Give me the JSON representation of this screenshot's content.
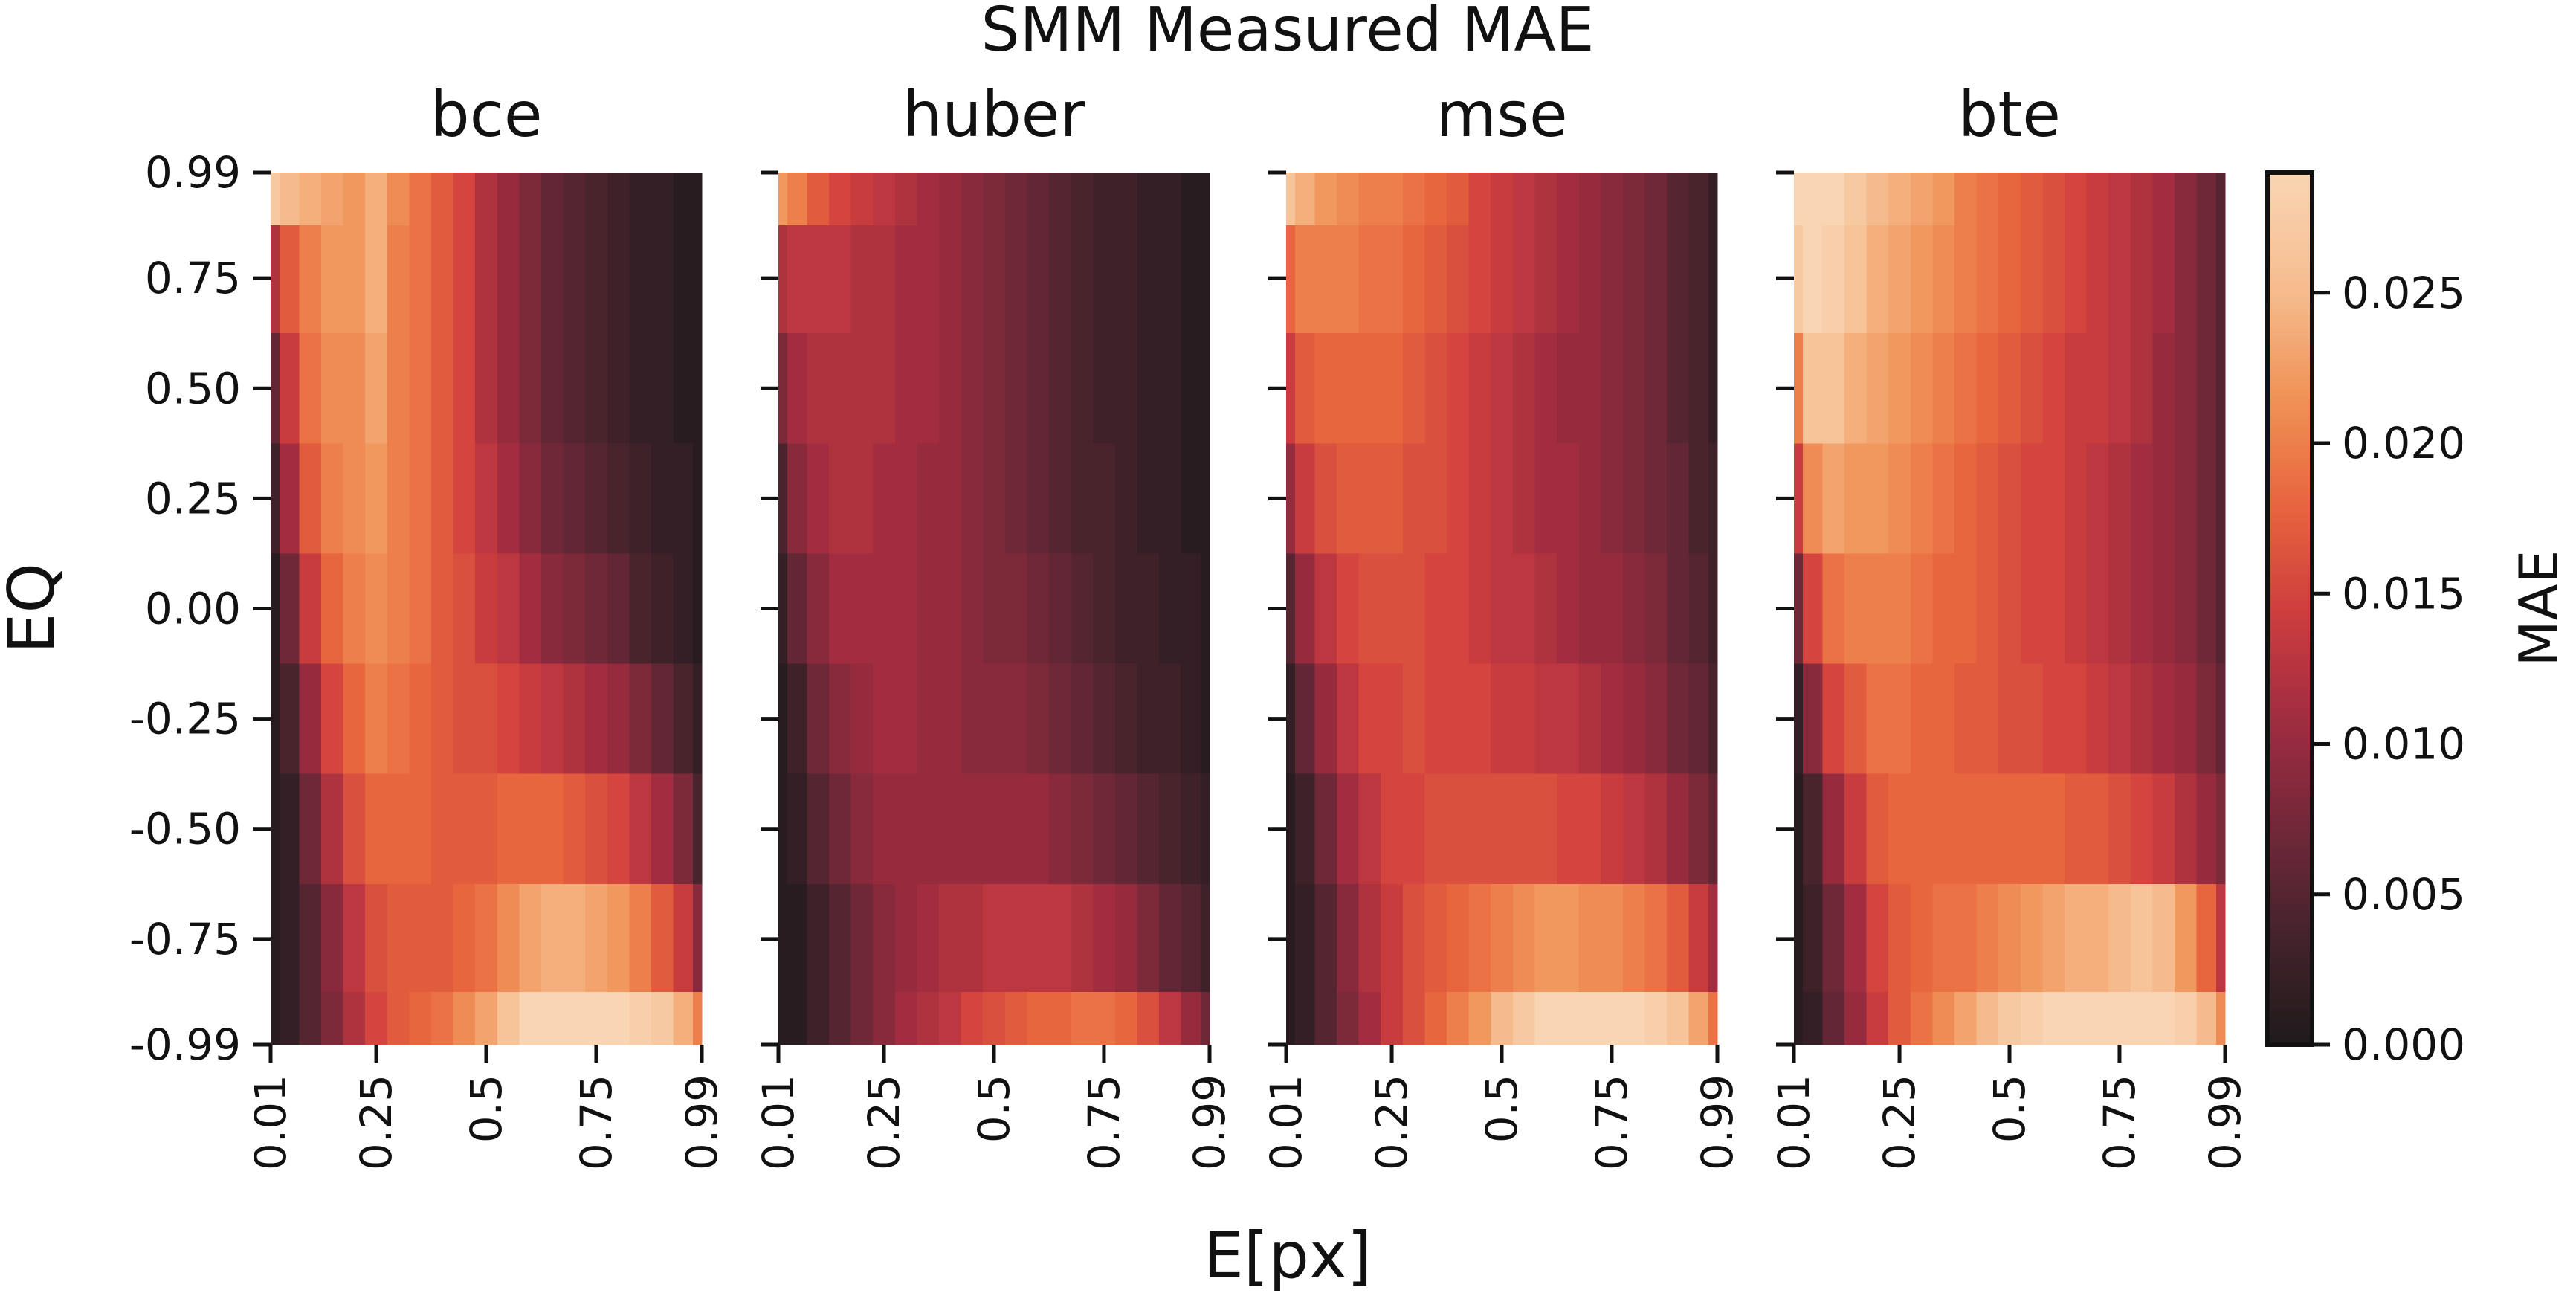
{
  "chart_data": {
    "type": "heatmap",
    "title": "SMM Measured MAE",
    "xlabel": "E[px]",
    "ylabel": "EQ",
    "x_ticks": [
      "0.01",
      "0.25",
      "0.5",
      "0.75",
      "0.99"
    ],
    "y_ticks": [
      "0.99",
      "0.75",
      "0.50",
      "0.25",
      "0.00",
      "-0.25",
      "-0.50",
      "-0.75",
      "-0.99"
    ],
    "xlim": [
      0.01,
      0.99
    ],
    "ylim": [
      -0.99,
      0.99
    ],
    "colorbar": {
      "label": "MAE",
      "range": [
        0.0,
        0.029
      ],
      "ticks": [
        "0.000",
        "0.005",
        "0.010",
        "0.015",
        "0.020",
        "0.025"
      ],
      "colormap": [
        "#1f1a1c",
        "#44232c",
        "#722839",
        "#a12c40",
        "#cf3f3e",
        "#e9673d",
        "#f0955a",
        "#f6bf93",
        "#f9d5b3"
      ]
    },
    "grid": false,
    "panels": [
      {
        "name": "bce",
        "x": [
          0.01,
          0.05,
          0.1,
          0.15,
          0.2,
          0.25,
          0.3,
          0.35,
          0.4,
          0.45,
          0.5,
          0.55,
          0.6,
          0.65,
          0.7,
          0.75,
          0.8,
          0.85,
          0.9,
          0.95,
          0.99
        ],
        "y": [
          0.99,
          0.75,
          0.5,
          0.25,
          0.0,
          -0.25,
          -0.5,
          -0.75,
          -0.99
        ],
        "z": [
          [
            0.027,
            0.025,
            0.024,
            0.023,
            0.022,
            0.024,
            0.021,
            0.019,
            0.017,
            0.015,
            0.012,
            0.01,
            0.008,
            0.006,
            0.005,
            0.004,
            0.003,
            0.002,
            0.002,
            0.001,
            0.001
          ],
          [
            0.012,
            0.017,
            0.02,
            0.022,
            0.022,
            0.024,
            0.02,
            0.019,
            0.017,
            0.015,
            0.012,
            0.01,
            0.008,
            0.006,
            0.005,
            0.004,
            0.003,
            0.002,
            0.002,
            0.001,
            0.001
          ],
          [
            0.006,
            0.014,
            0.019,
            0.021,
            0.021,
            0.023,
            0.02,
            0.019,
            0.017,
            0.015,
            0.012,
            0.01,
            0.008,
            0.006,
            0.005,
            0.004,
            0.003,
            0.002,
            0.002,
            0.001,
            0.001
          ],
          [
            0.003,
            0.011,
            0.017,
            0.02,
            0.021,
            0.022,
            0.02,
            0.019,
            0.017,
            0.015,
            0.013,
            0.011,
            0.009,
            0.007,
            0.006,
            0.005,
            0.004,
            0.003,
            0.002,
            0.002,
            0.001
          ],
          [
            0.001,
            0.007,
            0.014,
            0.018,
            0.02,
            0.021,
            0.02,
            0.019,
            0.017,
            0.016,
            0.014,
            0.013,
            0.011,
            0.009,
            0.008,
            0.007,
            0.006,
            0.004,
            0.003,
            0.002,
            0.001
          ],
          [
            0.001,
            0.004,
            0.01,
            0.015,
            0.018,
            0.02,
            0.019,
            0.018,
            0.017,
            0.016,
            0.016,
            0.015,
            0.014,
            0.013,
            0.012,
            0.011,
            0.01,
            0.008,
            0.006,
            0.004,
            0.002
          ],
          [
            0.001,
            0.002,
            0.007,
            0.012,
            0.016,
            0.018,
            0.018,
            0.018,
            0.017,
            0.017,
            0.017,
            0.018,
            0.018,
            0.018,
            0.017,
            0.016,
            0.015,
            0.013,
            0.011,
            0.008,
            0.004
          ],
          [
            0.001,
            0.002,
            0.005,
            0.009,
            0.013,
            0.016,
            0.017,
            0.017,
            0.017,
            0.018,
            0.019,
            0.021,
            0.023,
            0.024,
            0.024,
            0.023,
            0.022,
            0.02,
            0.017,
            0.014,
            0.009
          ],
          [
            0.001,
            0.002,
            0.005,
            0.008,
            0.012,
            0.015,
            0.017,
            0.018,
            0.019,
            0.021,
            0.023,
            0.026,
            0.029,
            0.029,
            0.029,
            0.029,
            0.029,
            0.028,
            0.027,
            0.024,
            0.02
          ]
        ]
      },
      {
        "name": "huber",
        "x": [
          0.01,
          0.05,
          0.1,
          0.15,
          0.2,
          0.25,
          0.3,
          0.35,
          0.4,
          0.45,
          0.5,
          0.55,
          0.6,
          0.65,
          0.7,
          0.75,
          0.8,
          0.85,
          0.9,
          0.95,
          0.99
        ],
        "y": [
          0.99,
          0.75,
          0.5,
          0.25,
          0.0,
          -0.25,
          -0.5,
          -0.75,
          -0.99
        ],
        "z": [
          [
            0.022,
            0.02,
            0.017,
            0.015,
            0.014,
            0.013,
            0.012,
            0.011,
            0.01,
            0.009,
            0.008,
            0.007,
            0.006,
            0.005,
            0.004,
            0.003,
            0.003,
            0.002,
            0.002,
            0.001,
            0.001
          ],
          [
            0.012,
            0.013,
            0.013,
            0.013,
            0.012,
            0.012,
            0.011,
            0.011,
            0.01,
            0.009,
            0.008,
            0.007,
            0.006,
            0.005,
            0.004,
            0.003,
            0.003,
            0.002,
            0.002,
            0.001,
            0.001
          ],
          [
            0.008,
            0.011,
            0.012,
            0.012,
            0.012,
            0.012,
            0.011,
            0.011,
            0.01,
            0.009,
            0.008,
            0.007,
            0.006,
            0.005,
            0.004,
            0.003,
            0.003,
            0.002,
            0.002,
            0.001,
            0.001
          ],
          [
            0.004,
            0.009,
            0.011,
            0.012,
            0.012,
            0.011,
            0.011,
            0.01,
            0.01,
            0.009,
            0.008,
            0.007,
            0.006,
            0.005,
            0.004,
            0.004,
            0.003,
            0.002,
            0.002,
            0.001,
            0.001
          ],
          [
            0.002,
            0.006,
            0.009,
            0.011,
            0.011,
            0.011,
            0.011,
            0.01,
            0.01,
            0.009,
            0.008,
            0.008,
            0.007,
            0.006,
            0.005,
            0.004,
            0.003,
            0.003,
            0.002,
            0.002,
            0.001
          ],
          [
            0.001,
            0.003,
            0.007,
            0.009,
            0.01,
            0.011,
            0.011,
            0.01,
            0.01,
            0.009,
            0.009,
            0.009,
            0.008,
            0.007,
            0.006,
            0.005,
            0.004,
            0.003,
            0.003,
            0.002,
            0.001
          ],
          [
            0.001,
            0.002,
            0.005,
            0.007,
            0.009,
            0.01,
            0.01,
            0.01,
            0.01,
            0.01,
            0.01,
            0.01,
            0.01,
            0.009,
            0.008,
            0.007,
            0.006,
            0.005,
            0.004,
            0.003,
            0.002
          ],
          [
            0.001,
            0.001,
            0.003,
            0.005,
            0.007,
            0.009,
            0.01,
            0.011,
            0.012,
            0.012,
            0.013,
            0.013,
            0.013,
            0.013,
            0.012,
            0.011,
            0.01,
            0.008,
            0.006,
            0.005,
            0.003
          ],
          [
            0.001,
            0.001,
            0.003,
            0.005,
            0.007,
            0.009,
            0.011,
            0.012,
            0.013,
            0.015,
            0.016,
            0.017,
            0.018,
            0.018,
            0.019,
            0.019,
            0.018,
            0.016,
            0.013,
            0.01,
            0.007
          ]
        ]
      },
      {
        "name": "mse",
        "x": [
          0.01,
          0.05,
          0.1,
          0.15,
          0.2,
          0.25,
          0.3,
          0.35,
          0.4,
          0.45,
          0.5,
          0.55,
          0.6,
          0.65,
          0.7,
          0.75,
          0.8,
          0.85,
          0.9,
          0.95,
          0.99
        ],
        "y": [
          0.99,
          0.75,
          0.5,
          0.25,
          0.0,
          -0.25,
          -0.5,
          -0.75,
          -0.99
        ],
        "z": [
          [
            0.026,
            0.024,
            0.022,
            0.021,
            0.02,
            0.02,
            0.019,
            0.018,
            0.017,
            0.015,
            0.014,
            0.013,
            0.012,
            0.011,
            0.01,
            0.009,
            0.008,
            0.007,
            0.005,
            0.004,
            0.002
          ],
          [
            0.018,
            0.02,
            0.02,
            0.02,
            0.019,
            0.019,
            0.018,
            0.017,
            0.016,
            0.015,
            0.014,
            0.013,
            0.012,
            0.011,
            0.01,
            0.009,
            0.008,
            0.007,
            0.005,
            0.004,
            0.002
          ],
          [
            0.014,
            0.017,
            0.018,
            0.018,
            0.018,
            0.018,
            0.017,
            0.016,
            0.015,
            0.014,
            0.013,
            0.012,
            0.011,
            0.01,
            0.01,
            0.009,
            0.008,
            0.007,
            0.005,
            0.004,
            0.002
          ],
          [
            0.01,
            0.014,
            0.016,
            0.017,
            0.017,
            0.017,
            0.016,
            0.016,
            0.015,
            0.014,
            0.013,
            0.012,
            0.011,
            0.011,
            0.01,
            0.009,
            0.008,
            0.007,
            0.006,
            0.004,
            0.003
          ],
          [
            0.005,
            0.01,
            0.013,
            0.015,
            0.016,
            0.016,
            0.016,
            0.015,
            0.015,
            0.014,
            0.013,
            0.013,
            0.012,
            0.011,
            0.01,
            0.01,
            0.009,
            0.008,
            0.006,
            0.005,
            0.003
          ],
          [
            0.002,
            0.006,
            0.01,
            0.013,
            0.015,
            0.015,
            0.016,
            0.015,
            0.015,
            0.015,
            0.014,
            0.014,
            0.013,
            0.013,
            0.012,
            0.011,
            0.01,
            0.009,
            0.007,
            0.006,
            0.004
          ],
          [
            0.001,
            0.003,
            0.007,
            0.011,
            0.013,
            0.015,
            0.015,
            0.016,
            0.016,
            0.016,
            0.016,
            0.016,
            0.016,
            0.015,
            0.015,
            0.014,
            0.013,
            0.012,
            0.01,
            0.008,
            0.006
          ],
          [
            0.001,
            0.002,
            0.005,
            0.009,
            0.012,
            0.014,
            0.016,
            0.017,
            0.018,
            0.019,
            0.02,
            0.021,
            0.022,
            0.022,
            0.021,
            0.021,
            0.02,
            0.019,
            0.017,
            0.014,
            0.011
          ],
          [
            0.001,
            0.002,
            0.005,
            0.008,
            0.011,
            0.014,
            0.016,
            0.018,
            0.02,
            0.022,
            0.025,
            0.027,
            0.029,
            0.029,
            0.029,
            0.029,
            0.029,
            0.028,
            0.026,
            0.023,
            0.019
          ]
        ]
      },
      {
        "name": "bte",
        "x": [
          0.01,
          0.05,
          0.1,
          0.15,
          0.2,
          0.25,
          0.3,
          0.35,
          0.4,
          0.45,
          0.5,
          0.55,
          0.6,
          0.65,
          0.7,
          0.75,
          0.8,
          0.85,
          0.9,
          0.95,
          0.99
        ],
        "y": [
          0.99,
          0.75,
          0.5,
          0.25,
          0.0,
          -0.25,
          -0.5,
          -0.75,
          -0.99
        ],
        "z": [
          [
            0.029,
            0.029,
            0.029,
            0.027,
            0.025,
            0.024,
            0.023,
            0.022,
            0.02,
            0.019,
            0.018,
            0.017,
            0.016,
            0.015,
            0.014,
            0.013,
            0.012,
            0.011,
            0.009,
            0.007,
            0.005
          ],
          [
            0.027,
            0.029,
            0.028,
            0.026,
            0.024,
            0.023,
            0.022,
            0.021,
            0.02,
            0.019,
            0.018,
            0.017,
            0.016,
            0.015,
            0.014,
            0.013,
            0.012,
            0.011,
            0.009,
            0.007,
            0.005
          ],
          [
            0.02,
            0.026,
            0.026,
            0.024,
            0.023,
            0.022,
            0.021,
            0.02,
            0.019,
            0.018,
            0.017,
            0.016,
            0.015,
            0.014,
            0.014,
            0.013,
            0.012,
            0.01,
            0.009,
            0.007,
            0.005
          ],
          [
            0.014,
            0.021,
            0.023,
            0.022,
            0.022,
            0.021,
            0.02,
            0.019,
            0.018,
            0.017,
            0.016,
            0.015,
            0.015,
            0.014,
            0.013,
            0.012,
            0.011,
            0.01,
            0.009,
            0.007,
            0.005
          ],
          [
            0.007,
            0.015,
            0.019,
            0.02,
            0.02,
            0.02,
            0.019,
            0.018,
            0.018,
            0.017,
            0.016,
            0.015,
            0.015,
            0.014,
            0.013,
            0.012,
            0.011,
            0.01,
            0.009,
            0.007,
            0.005
          ],
          [
            0.002,
            0.009,
            0.015,
            0.017,
            0.019,
            0.019,
            0.018,
            0.018,
            0.017,
            0.017,
            0.016,
            0.016,
            0.015,
            0.015,
            0.014,
            0.013,
            0.012,
            0.011,
            0.01,
            0.008,
            0.006
          ],
          [
            0.001,
            0.004,
            0.01,
            0.014,
            0.017,
            0.018,
            0.018,
            0.018,
            0.018,
            0.018,
            0.018,
            0.018,
            0.018,
            0.017,
            0.017,
            0.016,
            0.015,
            0.014,
            0.012,
            0.01,
            0.008
          ],
          [
            0.001,
            0.003,
            0.007,
            0.011,
            0.015,
            0.017,
            0.018,
            0.019,
            0.019,
            0.02,
            0.021,
            0.022,
            0.023,
            0.024,
            0.024,
            0.025,
            0.026,
            0.025,
            0.022,
            0.018,
            0.013
          ],
          [
            0.001,
            0.002,
            0.006,
            0.01,
            0.014,
            0.017,
            0.019,
            0.021,
            0.023,
            0.025,
            0.027,
            0.028,
            0.029,
            0.029,
            0.029,
            0.029,
            0.029,
            0.029,
            0.028,
            0.025,
            0.021
          ]
        ]
      }
    ]
  }
}
